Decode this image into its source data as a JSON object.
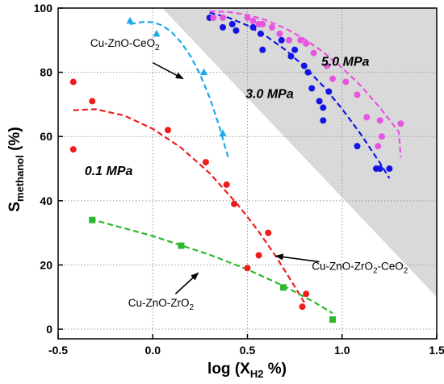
{
  "chart_data": {
    "type": "scatter",
    "xlabel": {
      "main": "log (X",
      "sub": "H2",
      "tail": " %)"
    },
    "ylabel": {
      "main": "S",
      "sub": "methanol",
      "tail": " (%)"
    },
    "xlim": [
      -0.5,
      1.5
    ],
    "ylim": [
      -3,
      100
    ],
    "x_ticks": [
      "-0.5",
      "0.0",
      "0.5",
      "1.0",
      "1.5"
    ],
    "x_tick_values": [
      -0.5,
      0.0,
      0.5,
      1.0,
      1.5
    ],
    "y_ticks": [
      "0",
      "20",
      "40",
      "60",
      "80",
      "100"
    ],
    "y_tick_values": [
      0,
      20,
      40,
      60,
      80,
      100
    ],
    "grid": "dotted",
    "shaded_region": {
      "color": "#d9d9d9",
      "from": [
        0.05,
        100
      ],
      "to": [
        1.5,
        10
      ]
    },
    "series": [
      {
        "key": "red",
        "color": "#ee1c1c",
        "marker": "circle",
        "points": [
          [
            -0.42,
            77
          ],
          [
            -0.42,
            56
          ],
          [
            -0.32,
            71
          ],
          [
            0.08,
            62
          ],
          [
            0.28,
            52
          ],
          [
            0.39,
            45
          ],
          [
            0.43,
            39
          ],
          [
            0.5,
            19
          ],
          [
            0.56,
            23
          ],
          [
            0.61,
            30
          ],
          [
            0.79,
            7
          ],
          [
            0.81,
            11
          ]
        ],
        "trend": [
          [
            -0.42,
            68.2
          ],
          [
            -0.3,
            68.5
          ],
          [
            -0.15,
            66.5
          ],
          [
            0.0,
            62.4
          ],
          [
            0.15,
            56.5
          ],
          [
            0.3,
            48.6
          ],
          [
            0.45,
            38.7
          ],
          [
            0.55,
            31.2
          ],
          [
            0.65,
            22.7
          ],
          [
            0.75,
            13.3
          ],
          [
            0.8,
            8.3
          ]
        ]
      },
      {
        "key": "green",
        "color": "#2db82d",
        "marker": "square",
        "points": [
          [
            -0.32,
            34
          ],
          [
            0.15,
            26
          ],
          [
            0.69,
            13
          ],
          [
            0.95,
            3
          ]
        ],
        "trend": [
          [
            -0.33,
            34.3
          ],
          [
            0.0,
            29.0
          ],
          [
            0.3,
            23.2
          ],
          [
            0.5,
            18.6
          ],
          [
            0.7,
            13.2
          ],
          [
            0.85,
            8.5
          ],
          [
            0.95,
            5.0
          ]
        ]
      },
      {
        "key": "lightblue",
        "color": "#1ca9ec",
        "marker": "triangle",
        "points": [
          [
            -0.12,
            96
          ],
          [
            0.02,
            92
          ],
          [
            0.27,
            80
          ],
          [
            0.37,
            61
          ]
        ],
        "trend": [
          [
            -0.12,
            95.0
          ],
          [
            -0.05,
            95.7
          ],
          [
            0.0,
            95.6
          ],
          [
            0.05,
            94.6
          ],
          [
            0.1,
            92.5
          ],
          [
            0.15,
            89.3
          ],
          [
            0.2,
            85.0
          ],
          [
            0.25,
            79.3
          ],
          [
            0.3,
            72.2
          ],
          [
            0.35,
            63.5
          ],
          [
            0.4,
            53.0
          ]
        ]
      },
      {
        "key": "blue",
        "color": "#1414e6",
        "marker": "circle",
        "points": [
          [
            0.3,
            97
          ],
          [
            0.37,
            94
          ],
          [
            0.42,
            95
          ],
          [
            0.44,
            93
          ],
          [
            0.53,
            94
          ],
          [
            0.57,
            92
          ],
          [
            0.58,
            87
          ],
          [
            0.68,
            90
          ],
          [
            0.73,
            85
          ],
          [
            0.75,
            87
          ],
          [
            0.8,
            82
          ],
          [
            0.82,
            80
          ],
          [
            0.84,
            75
          ],
          [
            0.88,
            71
          ],
          [
            0.9,
            69
          ],
          [
            0.9,
            65
          ],
          [
            0.93,
            74
          ],
          [
            1.08,
            57
          ],
          [
            1.18,
            50
          ],
          [
            1.2,
            50
          ],
          [
            1.25,
            50
          ]
        ],
        "trend": [
          [
            0.3,
            98.6
          ],
          [
            0.4,
            97.0
          ],
          [
            0.5,
            94.6
          ],
          [
            0.6,
            91.2
          ],
          [
            0.7,
            87.0
          ],
          [
            0.8,
            81.8
          ],
          [
            0.9,
            75.7
          ],
          [
            1.0,
            68.6
          ],
          [
            1.1,
            60.6
          ],
          [
            1.2,
            51.8
          ],
          [
            1.25,
            47.0
          ]
        ]
      },
      {
        "key": "pink",
        "color": "#e854e0",
        "marker": "circle",
        "points": [
          [
            0.32,
            97
          ],
          [
            0.37,
            97
          ],
          [
            0.5,
            97
          ],
          [
            0.53,
            96
          ],
          [
            0.56,
            95
          ],
          [
            0.58,
            95
          ],
          [
            0.63,
            94
          ],
          [
            0.67,
            92
          ],
          [
            0.72,
            90
          ],
          [
            0.78,
            90
          ],
          [
            0.81,
            89
          ],
          [
            0.85,
            86
          ],
          [
            0.92,
            82
          ],
          [
            0.95,
            78
          ],
          [
            1.02,
            77
          ],
          [
            1.08,
            73
          ],
          [
            1.13,
            66
          ],
          [
            1.2,
            65
          ],
          [
            1.21,
            60
          ],
          [
            1.19,
            57
          ],
          [
            1.31,
            64
          ]
        ],
        "trend": [
          [
            0.3,
            99.0
          ],
          [
            0.4,
            98.8
          ],
          [
            0.5,
            97.9
          ],
          [
            0.6,
            96.2
          ],
          [
            0.7,
            93.7
          ],
          [
            0.8,
            90.4
          ],
          [
            0.9,
            86.3
          ],
          [
            1.0,
            81.4
          ],
          [
            1.1,
            75.7
          ],
          [
            1.2,
            69.0
          ],
          [
            1.3,
            61.4
          ],
          [
            1.31,
            53.5
          ]
        ]
      }
    ],
    "annotations": [
      {
        "key": "ann-cu-zno-ceo2",
        "parts": [
          [
            "Cu-ZnO-CeO",
            false
          ],
          [
            "2",
            true
          ]
        ],
        "kind": "catalyst",
        "x": -0.33,
        "y": 88,
        "arrow": [
          [
            0.0,
            83
          ],
          [
            0.16,
            78
          ]
        ]
      },
      {
        "key": "ann-0-1-mpa",
        "parts": [
          [
            "0.1 MPa",
            false
          ]
        ],
        "kind": "pressure",
        "x": -0.36,
        "y": 48,
        "arrow": null
      },
      {
        "key": "ann-3-0-mpa",
        "parts": [
          [
            "3.0 MPa",
            false
          ]
        ],
        "kind": "pressure",
        "x": 0.49,
        "y": 72,
        "arrow": null
      },
      {
        "key": "ann-5-0-mpa",
        "parts": [
          [
            "5.0 MPa",
            false
          ]
        ],
        "kind": "pressure",
        "x": 0.89,
        "y": 82,
        "arrow": null
      },
      {
        "key": "ann-cu-zno-zro2-ceo2",
        "parts": [
          [
            "Cu-ZnO-ZrO",
            false
          ],
          [
            "2",
            true
          ],
          [
            "-CeO",
            false
          ],
          [
            "2",
            true
          ]
        ],
        "kind": "catalyst",
        "x": 0.84,
        "y": 18.5,
        "arrow": [
          [
            0.88,
            21
          ],
          [
            0.65,
            22.8
          ]
        ]
      },
      {
        "key": "ann-cu-zno-zro2",
        "parts": [
          [
            "Cu-ZnO-ZrO",
            false
          ],
          [
            "2",
            true
          ]
        ],
        "kind": "catalyst",
        "x": -0.13,
        "y": 7,
        "arrow": [
          [
            0.12,
            11
          ],
          [
            0.24,
            17.5
          ]
        ]
      }
    ]
  }
}
